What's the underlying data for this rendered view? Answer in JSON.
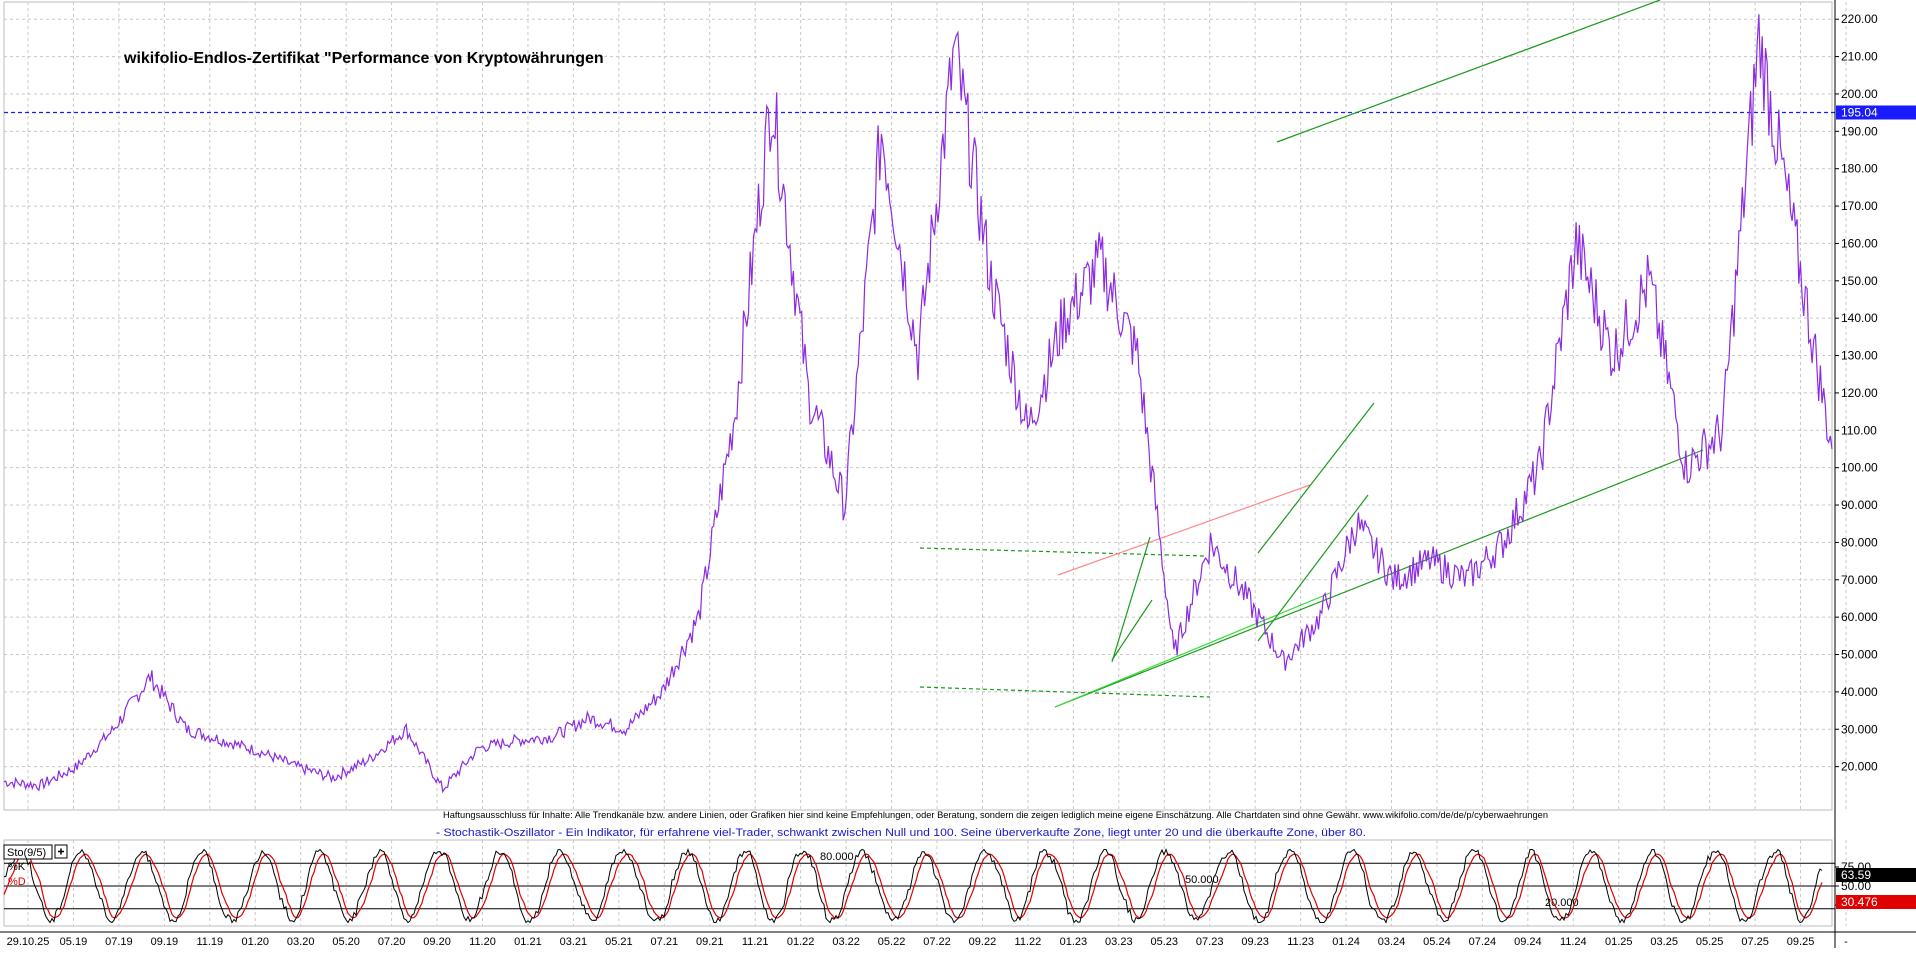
{
  "chart_data": {
    "type": "line",
    "title": "wikifolio-Endlos-Zertifikat \"Performance von Kryptowährungen",
    "price_axis": {
      "ylim": [
        10,
        223
      ],
      "ticks": [
        "20.000",
        "30.000",
        "40.000",
        "50.000",
        "60.000",
        "70.000",
        "80.000",
        "90.000",
        "100.00",
        "110.00",
        "120.00",
        "130.00",
        "140.00",
        "150.00",
        "160.00",
        "170.00",
        "180.00",
        "190.00",
        "200.00",
        "210.00",
        "220.00"
      ],
      "tick_values": [
        20,
        30,
        40,
        50,
        60,
        70,
        80,
        90,
        100,
        110,
        120,
        130,
        140,
        150,
        160,
        170,
        180,
        190,
        200,
        210,
        220
      ]
    },
    "current_price_label": "195.04",
    "current_price": 195.04,
    "colors": {
      "price": "#8b2be2",
      "current_price": "#1a1aff",
      "trend_green": "#1a9a1a",
      "trend_light_green": "#33dd33",
      "trend_red": "#ff8888",
      "stoch_k": "#000000",
      "stoch_d": "#e00000",
      "grid": "#c8c8c8"
    },
    "x_labels": [
      "29.10.25",
      "05.19",
      "07.19",
      "09.19",
      "11.19",
      "01.20",
      "03.20",
      "05.20",
      "07.20",
      "09.20",
      "11.20",
      "01.21",
      "03.21",
      "05.21",
      "07.21",
      "09.21",
      "11.21",
      "01.22",
      "03.22",
      "05.22",
      "07.22",
      "09.22",
      "11.22",
      "01.23",
      "03.23",
      "05.23",
      "07.23",
      "09.23",
      "11.23",
      "01.24",
      "03.24",
      "05.24",
      "07.24",
      "09.24",
      "11.24",
      "01.25",
      "03.25",
      "05.25",
      "07.25",
      "09.25",
      "-"
    ],
    "series": [
      {
        "name": "price",
        "t": [
          0,
          2,
          4,
          6,
          8,
          10,
          12,
          14,
          16,
          18,
          20,
          22,
          24,
          26,
          28,
          30,
          32,
          34,
          36,
          38,
          40,
          42,
          44,
          46,
          48,
          50,
          52,
          54,
          56,
          58,
          60,
          62,
          64,
          66,
          68,
          70,
          72,
          74,
          76,
          78,
          80,
          82,
          84,
          86,
          88,
          90,
          92,
          94,
          96,
          98,
          100
        ],
        "values": [
          16,
          15,
          20,
          30,
          44,
          30,
          27,
          24,
          20,
          17,
          22,
          30,
          14,
          25,
          27,
          28,
          33,
          30,
          40,
          60,
          115,
          200,
          120,
          90,
          190,
          130,
          212,
          150,
          110,
          140,
          155,
          130,
          50,
          80,
          65,
          48,
          60,
          85,
          70,
          75,
          70,
          80,
          100,
          160,
          130,
          150,
          100,
          110,
          215,
          160,
          105
        ]
      }
    ],
    "stochastic": {
      "label": "Sto(9/5)",
      "k_label": "%K",
      "d_label": "%D",
      "ylim": [
        0,
        100
      ],
      "ticks": [
        "75.00",
        "50.00",
        "25.00"
      ],
      "tick_values": [
        75,
        50,
        25
      ],
      "level_labels": [
        "80.000",
        "50.000",
        "20.000"
      ],
      "level_values": [
        80,
        50,
        20
      ],
      "k_value": "63.59",
      "d_value": "30.476"
    },
    "disclaimer": "Haftungsausschluss für Inhalte: Alle Trendkanäle bzw. andere Linien, oder Grafiken hier sind keine Empfehlungen, oder Beratung, sondern die zeigen lediglich meine eigene Einschätzung. Alle Chartdaten sind ohne Gewähr. www.wikifolio.com/de/de/p/cyberwaehrungen",
    "indicator_note": "- Stochastik-Oszillator - Ein Indikator, für erfahrene viel-Trader, schwankt zwischen Null und 100. Seine überverkaufte Zone, liegt unter 20 und die überkaufte Zone, über 80."
  }
}
